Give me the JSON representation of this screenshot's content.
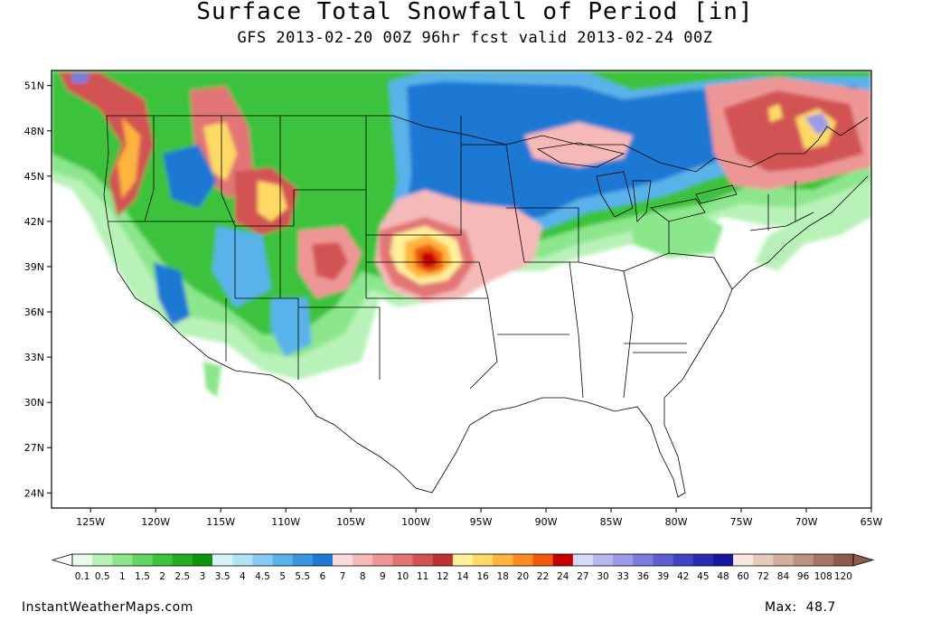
{
  "header": {
    "title": "Surface Total Snowfall of Period [in]",
    "subtitle": "GFS 2013-02-20 00Z 96hr fcst valid 2013-02-24 00Z"
  },
  "map": {
    "lat_labels": [
      "51N",
      "48N",
      "45N",
      "42N",
      "39N",
      "36N",
      "33N",
      "30N",
      "27N",
      "24N"
    ],
    "lat_values": [
      51,
      48,
      45,
      42,
      39,
      36,
      33,
      30,
      27,
      24
    ],
    "lon_labels": [
      "125W",
      "120W",
      "115W",
      "110W",
      "105W",
      "100W",
      "95W",
      "90W",
      "85W",
      "80W",
      "75W",
      "70W",
      "65W"
    ],
    "lon_values": [
      -125,
      -120,
      -115,
      -110,
      -105,
      -100,
      -95,
      -90,
      -85,
      -80,
      -75,
      -70,
      -65
    ],
    "lat_range": [
      23,
      52
    ],
    "lon_range": [
      -128,
      -65
    ]
  },
  "colorbar": {
    "labels": [
      "0.1",
      "0.5",
      "1",
      "1.5",
      "2",
      "2.5",
      "3",
      "3.5",
      "4",
      "4.5",
      "5",
      "5.5",
      "6",
      "7",
      "8",
      "9",
      "10",
      "11",
      "12",
      "14",
      "16",
      "18",
      "20",
      "22",
      "24",
      "27",
      "30",
      "33",
      "36",
      "39",
      "42",
      "45",
      "48",
      "60",
      "72",
      "84",
      "96",
      "108",
      "120"
    ],
    "colors": [
      "#e8fae8",
      "#b8f2b8",
      "#8ce68c",
      "#62d562",
      "#3dc23d",
      "#22ad22",
      "#0d960d",
      "#d8f2fa",
      "#b2e2f6",
      "#86cbf0",
      "#5ab2ea",
      "#3a96e0",
      "#1f78d2",
      "#fadada",
      "#f6b9b9",
      "#ee9696",
      "#e27474",
      "#d25252",
      "#bf3030",
      "#fff09a",
      "#ffd966",
      "#ffb43c",
      "#ff8a1e",
      "#f25a0a",
      "#c40000",
      "#d8d8f8",
      "#b8b8f0",
      "#9a9ae8",
      "#7c7ce0",
      "#5e5ed4",
      "#4242c4",
      "#2a2ab2",
      "#16169e",
      "#f6e6dc",
      "#e6cabc",
      "#d2ae9e",
      "#be9282",
      "#a87666",
      "#8e5a4a"
    ]
  },
  "footer": {
    "site": "InstantWeatherMaps.com",
    "max_label": "Max:",
    "max_value": "48.7"
  }
}
